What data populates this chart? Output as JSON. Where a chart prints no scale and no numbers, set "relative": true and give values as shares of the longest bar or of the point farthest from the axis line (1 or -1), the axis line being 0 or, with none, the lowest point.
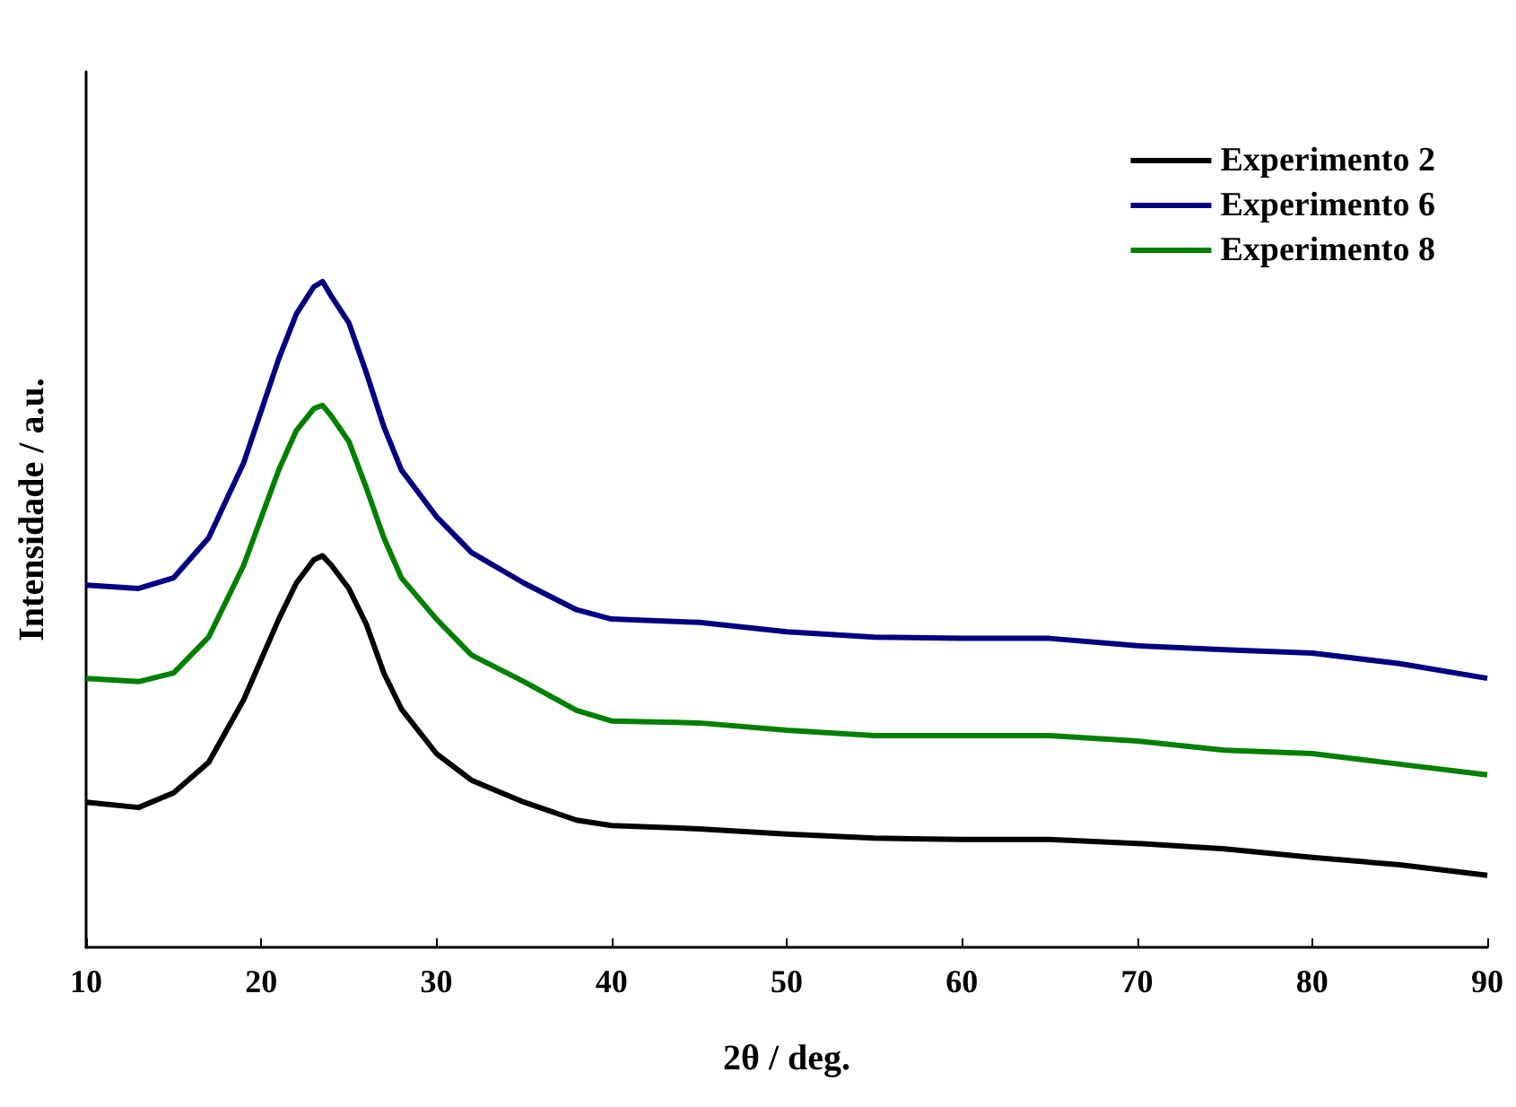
{
  "chart_data": {
    "type": "line",
    "xlabel": "2θ / deg.",
    "ylabel": "Intensidade / a.u.",
    "relative": true,
    "xlim": [
      10,
      90
    ],
    "xticks": [
      10,
      20,
      30,
      40,
      50,
      60,
      70,
      80,
      90
    ],
    "grid": false,
    "legend": "top right",
    "marker": "none",
    "line_style": "solid",
    "x": [
      10,
      13,
      15,
      17,
      19,
      21,
      22,
      23,
      23.5,
      24,
      25,
      26,
      27,
      28,
      30,
      32,
      35,
      38,
      40,
      45,
      50,
      55,
      60,
      65,
      70,
      75,
      80,
      85,
      90
    ],
    "series": [
      {
        "name": "Experimento 2",
        "color": "#000000",
        "values": [
          0.218,
          0.21,
          0.232,
          0.278,
          0.372,
          0.493,
          0.547,
          0.582,
          0.588,
          0.574,
          0.539,
          0.485,
          0.412,
          0.358,
          0.291,
          0.251,
          0.218,
          0.191,
          0.183,
          0.178,
          0.17,
          0.164,
          0.162,
          0.162,
          0.156,
          0.148,
          0.135,
          0.124,
          0.108
        ]
      },
      {
        "name": "Experimento 6",
        "color": "#000080",
        "values": [
          0.544,
          0.539,
          0.555,
          0.615,
          0.728,
          0.884,
          0.951,
          0.992,
          1,
          0.978,
          0.938,
          0.863,
          0.782,
          0.717,
          0.647,
          0.593,
          0.547,
          0.507,
          0.493,
          0.488,
          0.474,
          0.466,
          0.464,
          0.464,
          0.453,
          0.447,
          0.442,
          0.426,
          0.404
        ]
      },
      {
        "name": "Experimento 8",
        "color": "#008000",
        "values": [
          0.404,
          0.399,
          0.412,
          0.466,
          0.574,
          0.717,
          0.776,
          0.809,
          0.814,
          0.798,
          0.76,
          0.69,
          0.615,
          0.555,
          0.493,
          0.439,
          0.399,
          0.356,
          0.34,
          0.337,
          0.326,
          0.318,
          0.318,
          0.318,
          0.31,
          0.296,
          0.291,
          0.275,
          0.259
        ]
      }
    ]
  }
}
